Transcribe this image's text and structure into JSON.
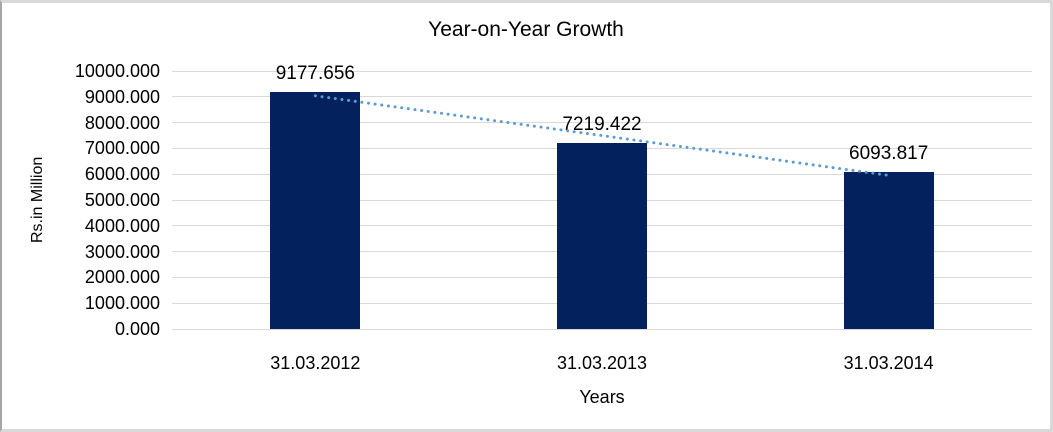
{
  "chart_data": {
    "type": "bar",
    "title": "Year-on-Year Growth",
    "xlabel": "Years",
    "ylabel": "Rs.in Million",
    "categories": [
      "31.03.2012",
      "31.03.2013",
      "31.03.2014"
    ],
    "values": [
      9177.656,
      7219.422,
      6093.817
    ],
    "data_labels": [
      "9177.656",
      "7219.422",
      "6093.817"
    ],
    "ylim": [
      0,
      10000
    ],
    "ytick_step": 1000,
    "yticks": [
      "10000.000",
      "9000.000",
      "8000.000",
      "7000.000",
      "6000.000",
      "5000.000",
      "4000.000",
      "3000.000",
      "2000.000",
      "1000.000",
      "0.000"
    ],
    "grid": true,
    "legend": "none",
    "colors": {
      "bar": "#03215c",
      "trendline": "#5b9bd5",
      "gridline": "#d9d9d9",
      "text": "#000000",
      "background": "#ffffff",
      "frame_border": "#d9d9d9"
    },
    "trendline": {
      "type": "linear",
      "style": "dotted"
    }
  }
}
